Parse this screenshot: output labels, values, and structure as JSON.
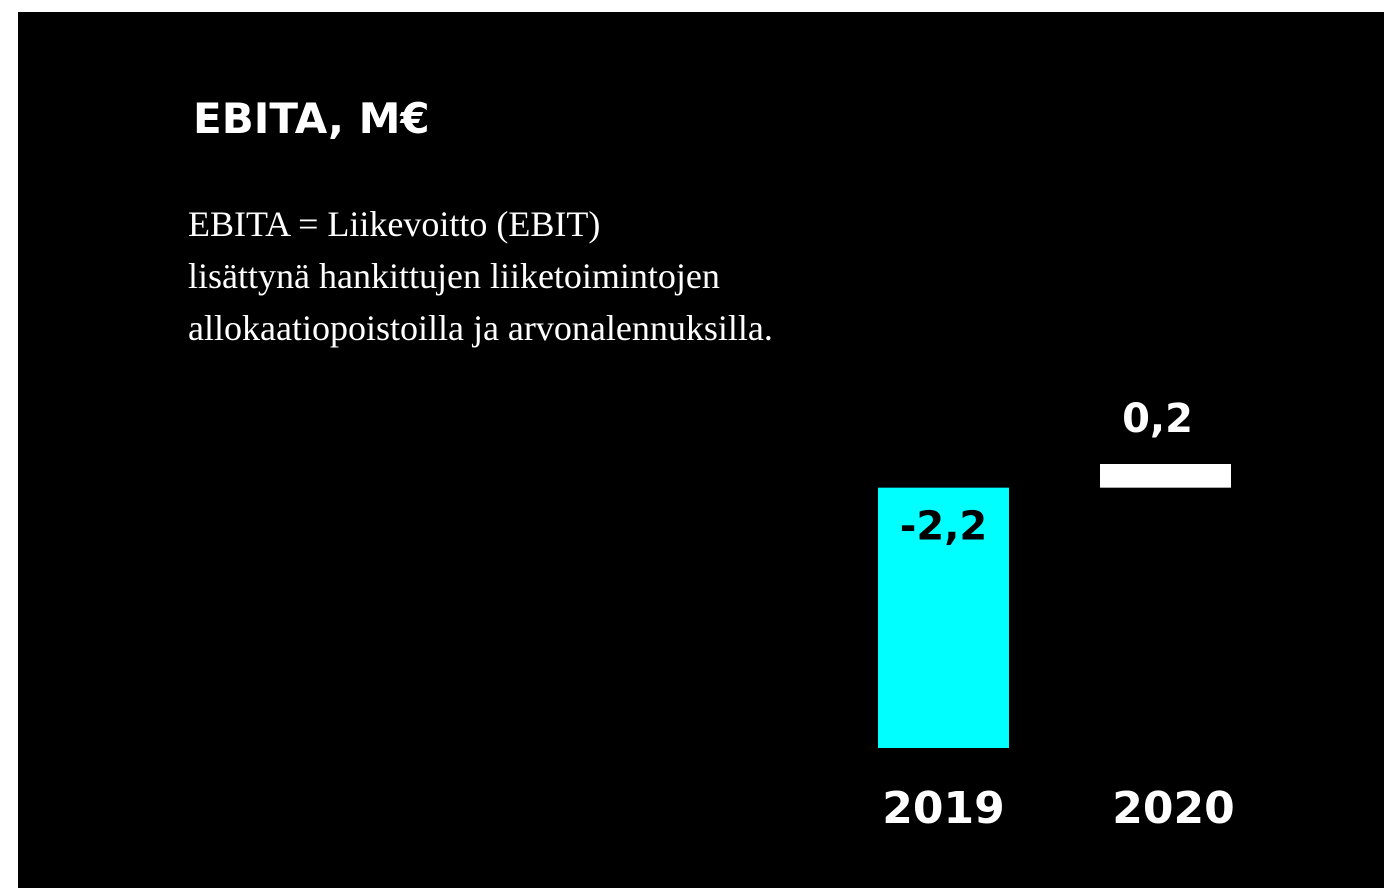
{
  "chart_data": {
    "type": "bar",
    "title": "EBITA, M€",
    "subtitle": [
      "EBITA = Liikevoitto (EBIT)",
      "lisättynä hankittujen liiketoimintojen",
      "allokaatiopoistoilla ja arvonalennuksilla."
    ],
    "categories": [
      "2019",
      "2020"
    ],
    "values": [
      -2.2,
      0.2
    ],
    "value_labels": [
      "-2,2",
      "0,2"
    ],
    "colors": [
      "#00ffff",
      "#ffffff"
    ]
  }
}
